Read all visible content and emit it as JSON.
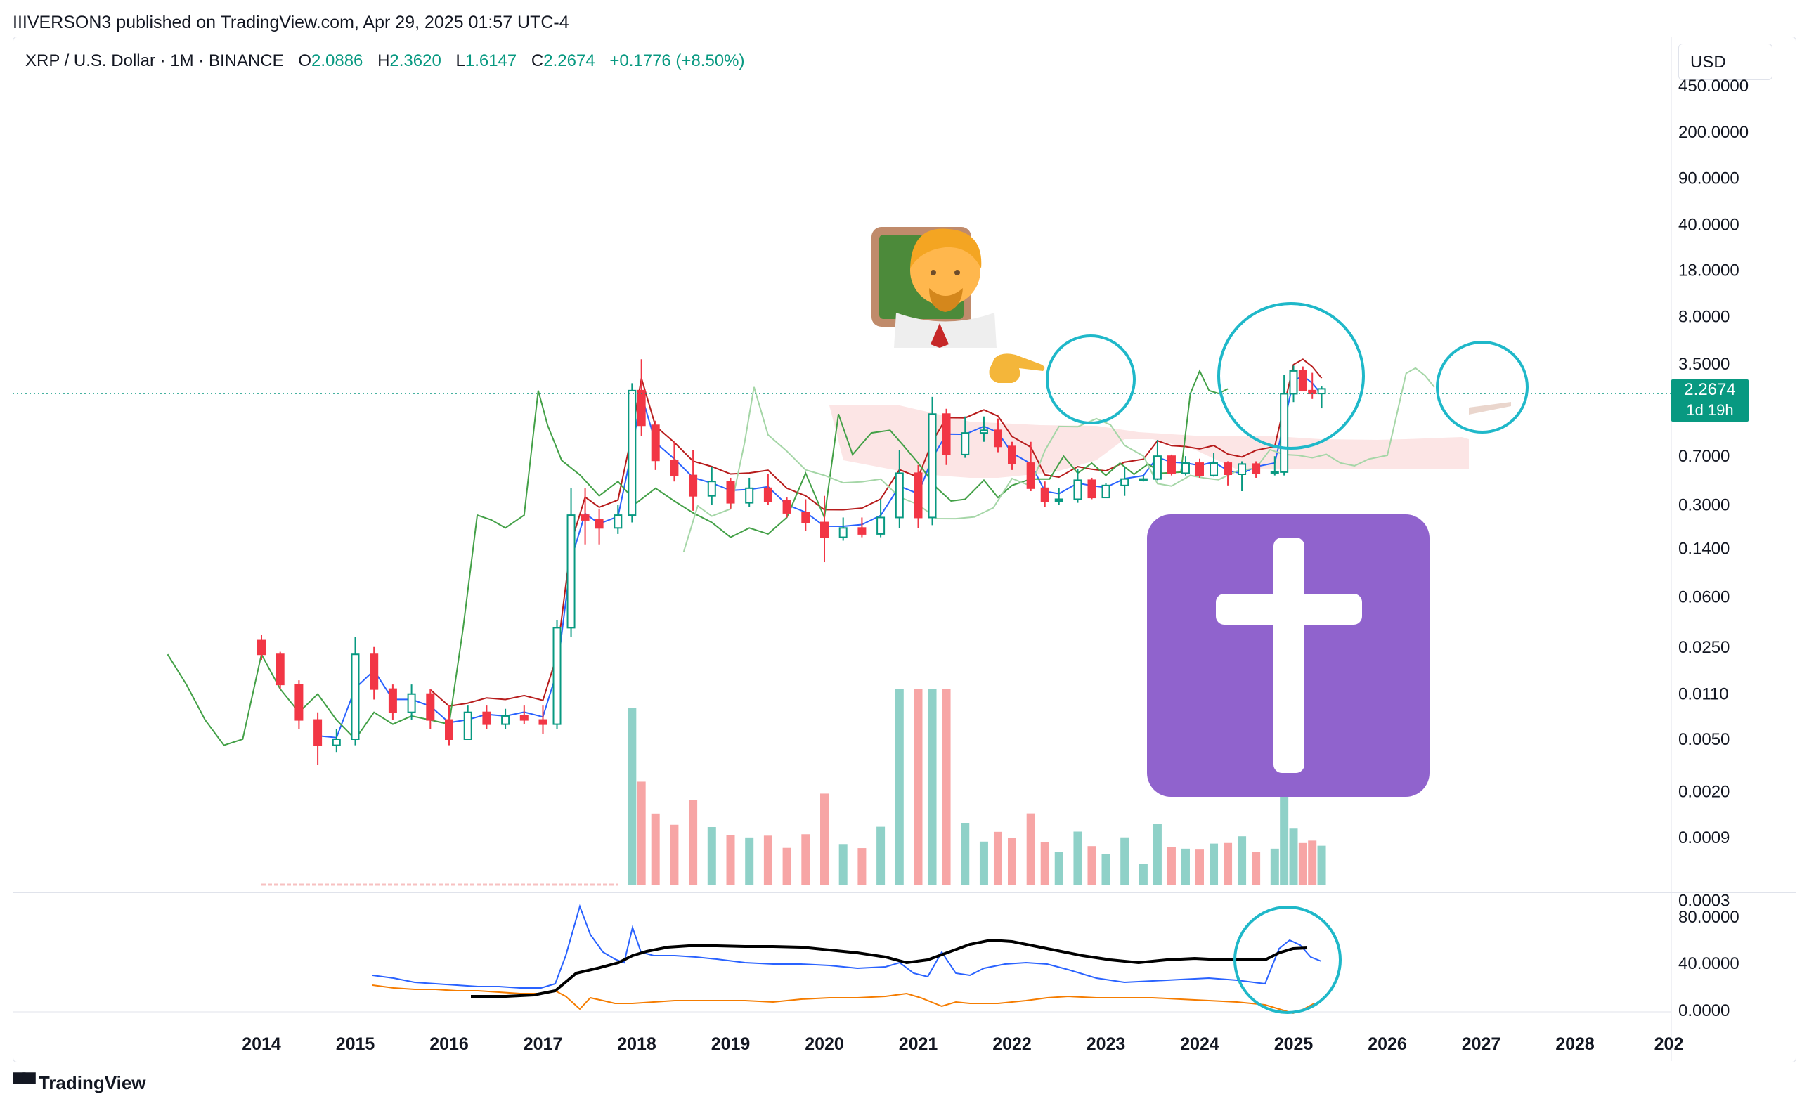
{
  "header": {
    "publisher_line": "IIIVERSON3 published on TradingView.com, Apr 29, 2025 01:57 UTC-4"
  },
  "legend": {
    "symbol": "XRP / U.S. Dollar · 1M · BINANCE",
    "open_label": "O",
    "open": "2.0886",
    "high_label": "H",
    "high": "2.3620",
    "low_label": "L",
    "low": "1.6147",
    "close_label": "C",
    "close": "2.2674",
    "change": "+0.1776 (+8.50%)"
  },
  "currency_button": "USD",
  "last_price_tag": {
    "price": "2.2674",
    "countdown": "1d 19h"
  },
  "footer": {
    "brand": "TradingView"
  },
  "colors": {
    "up": "#089981",
    "down": "#f23645",
    "teal_volume": "#8fd1c8",
    "red_volume": "#f7a5a5",
    "green_line": "#43a047",
    "blue_line": "#2962ff",
    "dark_red_line": "#b71c1c",
    "lagging_line": "#a5d6a7",
    "cloud_fill": "#fce4e4",
    "circle": "#1fb8c9",
    "adx_line": "#000000",
    "di_minus": "#f57c00",
    "cross_box": "#9063cd"
  },
  "icons": [
    "teacher-emoji-icon",
    "pointing-hand-icon",
    "latin-cross-icon",
    "tradingview-logo-icon"
  ],
  "chart_data": {
    "type": "candlestick",
    "price_scale": "log",
    "price_axis_ticks": [
      "450.0000",
      "200.0000",
      "90.0000",
      "40.0000",
      "18.0000",
      "8.0000",
      "3.5000",
      "0.7000",
      "0.3000",
      "0.1400",
      "0.0600",
      "0.0250",
      "0.0110",
      "0.0050",
      "0.0020",
      "0.0009",
      "0.0003"
    ],
    "indicator_axis_ticks": [
      "80.0000",
      "40.0000",
      "0.0000"
    ],
    "x_axis_ticks": [
      "2014",
      "2015",
      "2016",
      "2017",
      "2018",
      "2019",
      "2020",
      "2021",
      "2022",
      "2023",
      "2024",
      "2025",
      "2026",
      "2027",
      "2028",
      "202"
    ],
    "ylim": [
      0.0003,
      450
    ],
    "candles": [
      {
        "t": 2014.0,
        "o": 0.028,
        "h": 0.031,
        "l": 0.02,
        "c": 0.022
      },
      {
        "t": 2014.2,
        "o": 0.022,
        "h": 0.023,
        "l": 0.012,
        "c": 0.013
      },
      {
        "t": 2014.4,
        "o": 0.013,
        "h": 0.014,
        "l": 0.006,
        "c": 0.007
      },
      {
        "t": 2014.6,
        "o": 0.007,
        "h": 0.008,
        "l": 0.0032,
        "c": 0.0045
      },
      {
        "t": 2014.8,
        "o": 0.0045,
        "h": 0.006,
        "l": 0.004,
        "c": 0.005
      },
      {
        "t": 2015.0,
        "o": 0.005,
        "h": 0.03,
        "l": 0.0045,
        "c": 0.022
      },
      {
        "t": 2015.2,
        "o": 0.022,
        "h": 0.025,
        "l": 0.01,
        "c": 0.012
      },
      {
        "t": 2015.4,
        "o": 0.012,
        "h": 0.013,
        "l": 0.007,
        "c": 0.008
      },
      {
        "t": 2015.6,
        "o": 0.008,
        "h": 0.013,
        "l": 0.007,
        "c": 0.011
      },
      {
        "t": 2015.8,
        "o": 0.011,
        "h": 0.012,
        "l": 0.006,
        "c": 0.007
      },
      {
        "t": 2016.0,
        "o": 0.007,
        "h": 0.009,
        "l": 0.0045,
        "c": 0.005
      },
      {
        "t": 2016.2,
        "o": 0.005,
        "h": 0.009,
        "l": 0.005,
        "c": 0.008
      },
      {
        "t": 2016.4,
        "o": 0.008,
        "h": 0.009,
        "l": 0.006,
        "c": 0.0065
      },
      {
        "t": 2016.6,
        "o": 0.0065,
        "h": 0.0085,
        "l": 0.006,
        "c": 0.0075
      },
      {
        "t": 2016.8,
        "o": 0.0075,
        "h": 0.009,
        "l": 0.0065,
        "c": 0.007
      },
      {
        "t": 2017.0,
        "o": 0.007,
        "h": 0.009,
        "l": 0.0055,
        "c": 0.0065
      },
      {
        "t": 2017.15,
        "o": 0.0065,
        "h": 0.04,
        "l": 0.006,
        "c": 0.035
      },
      {
        "t": 2017.3,
        "o": 0.035,
        "h": 0.4,
        "l": 0.03,
        "c": 0.25
      },
      {
        "t": 2017.45,
        "o": 0.25,
        "h": 0.4,
        "l": 0.15,
        "c": 0.23
      },
      {
        "t": 2017.6,
        "o": 0.23,
        "h": 0.28,
        "l": 0.15,
        "c": 0.2
      },
      {
        "t": 2017.8,
        "o": 0.2,
        "h": 0.3,
        "l": 0.18,
        "c": 0.25
      },
      {
        "t": 2017.95,
        "o": 0.25,
        "h": 2.5,
        "l": 0.22,
        "c": 2.2
      },
      {
        "t": 2018.05,
        "o": 2.2,
        "h": 3.8,
        "l": 1.0,
        "c": 1.2
      },
      {
        "t": 2018.2,
        "o": 1.2,
        "h": 1.3,
        "l": 0.55,
        "c": 0.65
      },
      {
        "t": 2018.4,
        "o": 0.65,
        "h": 0.9,
        "l": 0.45,
        "c": 0.5
      },
      {
        "t": 2018.6,
        "o": 0.5,
        "h": 0.78,
        "l": 0.27,
        "c": 0.35
      },
      {
        "t": 2018.8,
        "o": 0.35,
        "h": 0.58,
        "l": 0.3,
        "c": 0.45
      },
      {
        "t": 2019.0,
        "o": 0.45,
        "h": 0.48,
        "l": 0.28,
        "c": 0.31
      },
      {
        "t": 2019.2,
        "o": 0.31,
        "h": 0.48,
        "l": 0.29,
        "c": 0.4
      },
      {
        "t": 2019.4,
        "o": 0.4,
        "h": 0.51,
        "l": 0.3,
        "c": 0.32
      },
      {
        "t": 2019.6,
        "o": 0.32,
        "h": 0.34,
        "l": 0.24,
        "c": 0.26
      },
      {
        "t": 2019.8,
        "o": 0.26,
        "h": 0.33,
        "l": 0.19,
        "c": 0.22
      },
      {
        "t": 2020.0,
        "o": 0.22,
        "h": 0.35,
        "l": 0.11,
        "c": 0.17
      },
      {
        "t": 2020.2,
        "o": 0.17,
        "h": 0.24,
        "l": 0.16,
        "c": 0.2
      },
      {
        "t": 2020.4,
        "o": 0.2,
        "h": 0.24,
        "l": 0.17,
        "c": 0.18
      },
      {
        "t": 2020.6,
        "o": 0.18,
        "h": 0.33,
        "l": 0.17,
        "c": 0.24
      },
      {
        "t": 2020.8,
        "o": 0.24,
        "h": 0.78,
        "l": 0.2,
        "c": 0.52
      },
      {
        "t": 2021.0,
        "o": 0.52,
        "h": 0.6,
        "l": 0.2,
        "c": 0.24
      },
      {
        "t": 2021.15,
        "o": 0.24,
        "h": 1.97,
        "l": 0.21,
        "c": 1.46
      },
      {
        "t": 2021.3,
        "o": 1.46,
        "h": 1.6,
        "l": 0.6,
        "c": 0.72
      },
      {
        "t": 2021.5,
        "o": 0.72,
        "h": 1.4,
        "l": 0.68,
        "c": 1.05
      },
      {
        "t": 2021.7,
        "o": 1.05,
        "h": 1.4,
        "l": 0.9,
        "c": 1.1
      },
      {
        "t": 2021.85,
        "o": 1.1,
        "h": 1.35,
        "l": 0.75,
        "c": 0.83
      },
      {
        "t": 2022.0,
        "o": 0.83,
        "h": 0.9,
        "l": 0.55,
        "c": 0.62
      },
      {
        "t": 2022.2,
        "o": 0.62,
        "h": 0.9,
        "l": 0.38,
        "c": 0.4
      },
      {
        "t": 2022.35,
        "o": 0.4,
        "h": 0.45,
        "l": 0.29,
        "c": 0.32
      },
      {
        "t": 2022.5,
        "o": 0.32,
        "h": 0.4,
        "l": 0.3,
        "c": 0.33
      },
      {
        "t": 2022.7,
        "o": 0.33,
        "h": 0.56,
        "l": 0.31,
        "c": 0.46
      },
      {
        "t": 2022.85,
        "o": 0.46,
        "h": 0.48,
        "l": 0.33,
        "c": 0.34
      },
      {
        "t": 2023.0,
        "o": 0.34,
        "h": 0.44,
        "l": 0.34,
        "c": 0.42
      },
      {
        "t": 2023.2,
        "o": 0.42,
        "h": 0.58,
        "l": 0.35,
        "c": 0.47
      },
      {
        "t": 2023.4,
        "o": 0.47,
        "h": 0.5,
        "l": 0.45,
        "c": 0.47
      },
      {
        "t": 2023.55,
        "o": 0.47,
        "h": 0.93,
        "l": 0.46,
        "c": 0.7
      },
      {
        "t": 2023.7,
        "o": 0.7,
        "h": 0.72,
        "l": 0.5,
        "c": 0.52
      },
      {
        "t": 2023.85,
        "o": 0.52,
        "h": 0.7,
        "l": 0.5,
        "c": 0.62
      },
      {
        "t": 2024.0,
        "o": 0.62,
        "h": 0.67,
        "l": 0.48,
        "c": 0.5
      },
      {
        "t": 2024.15,
        "o": 0.5,
        "h": 0.74,
        "l": 0.49,
        "c": 0.62
      },
      {
        "t": 2024.3,
        "o": 0.62,
        "h": 0.64,
        "l": 0.42,
        "c": 0.51
      },
      {
        "t": 2024.45,
        "o": 0.51,
        "h": 0.64,
        "l": 0.38,
        "c": 0.61
      },
      {
        "t": 2024.6,
        "o": 0.61,
        "h": 0.64,
        "l": 0.48,
        "c": 0.52
      },
      {
        "t": 2024.8,
        "o": 0.52,
        "h": 0.7,
        "l": 0.5,
        "c": 0.53
      },
      {
        "t": 2024.9,
        "o": 0.53,
        "h": 2.9,
        "l": 0.5,
        "c": 2.08
      },
      {
        "t": 2025.0,
        "o": 2.08,
        "h": 3.4,
        "l": 1.8,
        "c": 3.1
      },
      {
        "t": 2025.1,
        "o": 3.1,
        "h": 3.35,
        "l": 2.2,
        "c": 2.2
      },
      {
        "t": 2025.2,
        "o": 2.2,
        "h": 3.0,
        "l": 1.9,
        "c": 2.09
      },
      {
        "t": 2025.3,
        "o": 2.0886,
        "h": 2.362,
        "l": 1.6147,
        "c": 2.2674
      }
    ]
  }
}
